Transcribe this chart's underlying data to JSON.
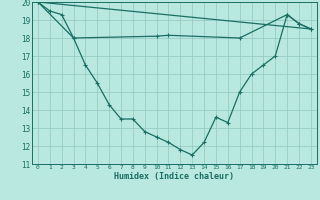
{
  "xlabel": "Humidex (Indice chaleur)",
  "xlim": [
    -0.5,
    23.5
  ],
  "ylim": [
    11,
    20
  ],
  "xticks": [
    0,
    1,
    2,
    3,
    4,
    5,
    6,
    7,
    8,
    9,
    10,
    11,
    12,
    13,
    14,
    15,
    16,
    17,
    18,
    19,
    20,
    21,
    22,
    23
  ],
  "yticks": [
    11,
    12,
    13,
    14,
    15,
    16,
    17,
    18,
    19,
    20
  ],
  "bg_color": "#b8e8e0",
  "line_color": "#1a6e64",
  "grid_color": "#90c8c0",
  "line1_x": [
    0,
    1,
    2,
    3,
    4,
    5,
    6,
    7,
    8,
    9,
    10,
    11,
    12,
    13,
    14,
    15,
    16,
    17,
    18,
    19,
    20,
    21,
    22,
    23
  ],
  "line1_y": [
    20.0,
    19.5,
    19.3,
    18.0,
    16.5,
    15.5,
    14.3,
    13.5,
    13.5,
    12.8,
    12.5,
    12.2,
    11.8,
    11.5,
    12.2,
    13.6,
    13.3,
    15.0,
    16.0,
    16.5,
    17.0,
    19.3,
    18.8,
    18.5
  ],
  "line2_x": [
    0,
    3,
    10,
    11,
    17,
    21,
    22,
    23
  ],
  "line2_y": [
    20.0,
    18.0,
    18.1,
    18.15,
    18.0,
    19.3,
    18.8,
    18.5
  ],
  "line3_x": [
    0,
    23
  ],
  "line3_y": [
    20.0,
    18.5
  ]
}
